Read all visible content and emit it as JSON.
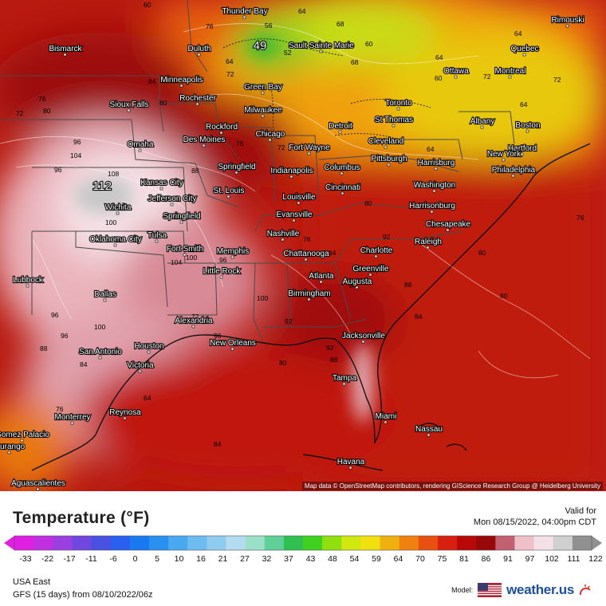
{
  "map": {
    "peak_value": "112",
    "min_value": "49",
    "attribution": "Map data © OpenStreetMap contributors, rendering GIScience Research Group @ Heidelberg University",
    "cities": [
      "Thunder Bay",
      "Sault Sainte Marie",
      "Rimouski",
      "Bismarck",
      "Duluth",
      "Quebec",
      "Minneapolis",
      "Ottawa",
      "Montreal",
      "Green Bay",
      "Rochester",
      "Sioux Falls",
      "Milwaukee",
      "Toronto",
      "St Thomas",
      "Albany",
      "Boston",
      "Rockford",
      "Detroit",
      "Des Moines",
      "Chicago",
      "Cleveland",
      "Omaha",
      "Fort Wayne",
      "Hartford",
      "Harrisburg",
      "Pittsburgh",
      "New York",
      "Springfield",
      "Indianapolis",
      "Columbus",
      "Philadelphia",
      "Kansas City",
      "Cincinnati",
      "Washington",
      "Jefferson City",
      "St. Louis",
      "Louisville",
      "Wichita",
      "Evansville",
      "Harrisonburg",
      "Springfield",
      "Chesapeake",
      "Tulsa",
      "Nashville",
      "Oklahoma City",
      "Raleigh",
      "Fort Smith",
      "Memphis",
      "Chattanooga",
      "Charlotte",
      "Little Rock",
      "Greenville",
      "Lubbock",
      "Atlanta",
      "Augusta",
      "Dallas",
      "Birmingham",
      "Alexandria",
      "San Antonio",
      "Houston",
      "New Orleans",
      "Jacksonville",
      "Victoria",
      "Tampa",
      "Monterrey",
      "Reynosa",
      "Miami",
      "Nassau",
      "Gomez Palacio",
      "Durango",
      "Havana",
      "Aguascalientes"
    ],
    "iso_labels": [
      "60",
      "64",
      "68",
      "76",
      "52",
      "56",
      "64",
      "60",
      "64",
      "64",
      "60",
      "72",
      "72",
      "80",
      "72",
      "76",
      "84",
      "80",
      "68",
      "72",
      "64",
      "76",
      "72",
      "64",
      "88",
      "96",
      "104",
      "108",
      "96",
      "100",
      "104",
      "100",
      "96",
      "92",
      "100",
      "96",
      "100",
      "96",
      "92",
      "88",
      "80",
      "76",
      "84",
      "84",
      "92",
      "88",
      "84",
      "80",
      "76",
      "80",
      "96",
      "88",
      "84",
      "80",
      "64",
      "76",
      "72",
      "84"
    ]
  },
  "legend": {
    "title": "Temperature (°F)",
    "valid_label": "Valid for",
    "valid_time": "Mon 08/15/2022, 04:00pm CDT",
    "region": "USA East",
    "model": "GFS (15 days) from  08/10/2022/06z",
    "brand_label": "Model:",
    "brand": "weather.us",
    "ticks": [
      "-33",
      "-22",
      "-17",
      "-11",
      "-6",
      "0",
      "5",
      "10",
      "16",
      "21",
      "27",
      "32",
      "37",
      "43",
      "48",
      "54",
      "59",
      "64",
      "70",
      "75",
      "81",
      "86",
      "91",
      "97",
      "102",
      "111",
      "122"
    ],
    "colors": [
      "#e020e0",
      "#c030e0",
      "#9a40e0",
      "#7048e0",
      "#4a50e0",
      "#2a60f0",
      "#1a78f0",
      "#2a90f0",
      "#48a8f0",
      "#6cbcf0",
      "#90ccf0",
      "#b4dcf0",
      "#9ce0c8",
      "#60d098",
      "#30c050",
      "#40d020",
      "#90e010",
      "#d0e810",
      "#f0e010",
      "#f0b010",
      "#f08010",
      "#e85010",
      "#d82010",
      "#b80808",
      "#980808",
      "#c06070",
      "#f0c0c8",
      "#f4e0e8",
      "#d0d0d0",
      "#909090"
    ]
  }
}
